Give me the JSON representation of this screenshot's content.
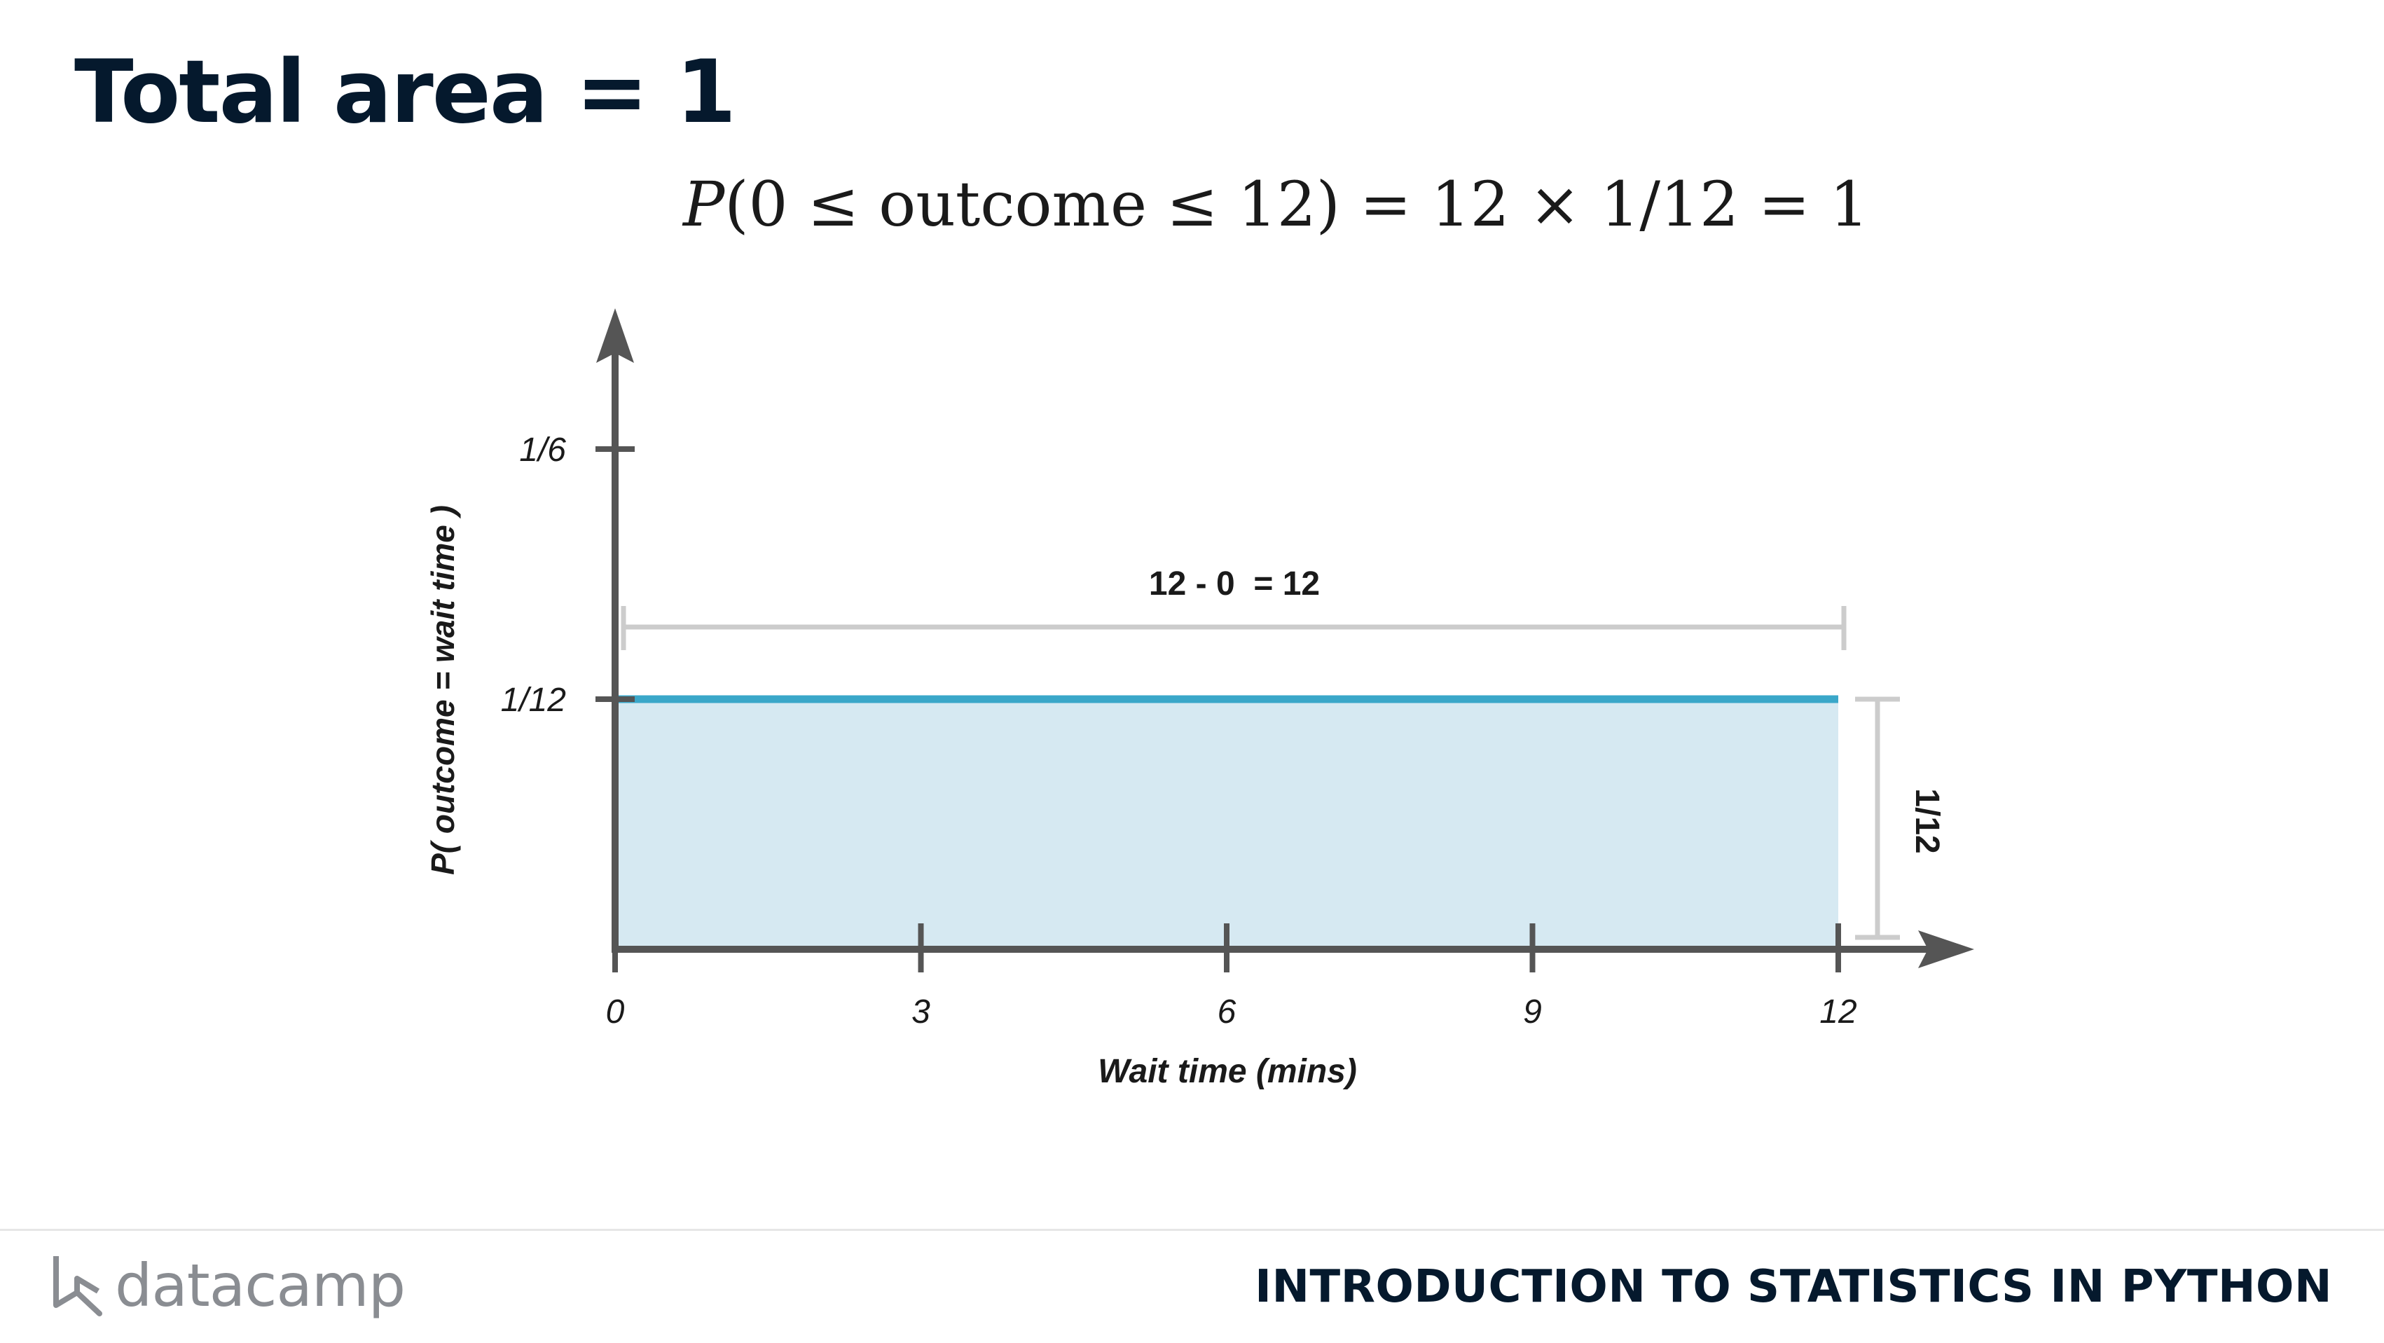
{
  "slide": {
    "title": "Total area = 1",
    "formula": {
      "var": "P",
      "rest": "(0 ≤ outcome ≤ 12) = 12 × 1/12 = 1"
    }
  },
  "chart_data": {
    "type": "area",
    "xlabel": "Wait time (mins)",
    "ylabel": "P( outcome  = wait time )",
    "x_ticks": [
      "0",
      "3",
      "6",
      "9",
      "12"
    ],
    "x_tick_values": [
      0,
      3,
      6,
      9,
      12
    ],
    "y_ticks": [
      "1/6",
      "1/12"
    ],
    "y_tick_values": [
      0.16667,
      0.08333
    ],
    "xlim": [
      0,
      13.5
    ],
    "ylim": [
      0,
      0.21
    ],
    "series": [
      {
        "x": [
          0,
          12
        ],
        "y": [
          0.08333,
          0.08333
        ]
      }
    ],
    "annotations": {
      "width_label": "12 - 0  = 12",
      "width_range": [
        0,
        12
      ],
      "height_label": "1/12"
    },
    "colors": {
      "line": "#3aa7c9",
      "fill": "#d6e9f2",
      "axis": "#555555",
      "bracket": "#cccccc"
    }
  },
  "footer": {
    "logo_text": "datacamp",
    "course_title": "INTRODUCTION TO STATISTICS IN PYTHON"
  }
}
